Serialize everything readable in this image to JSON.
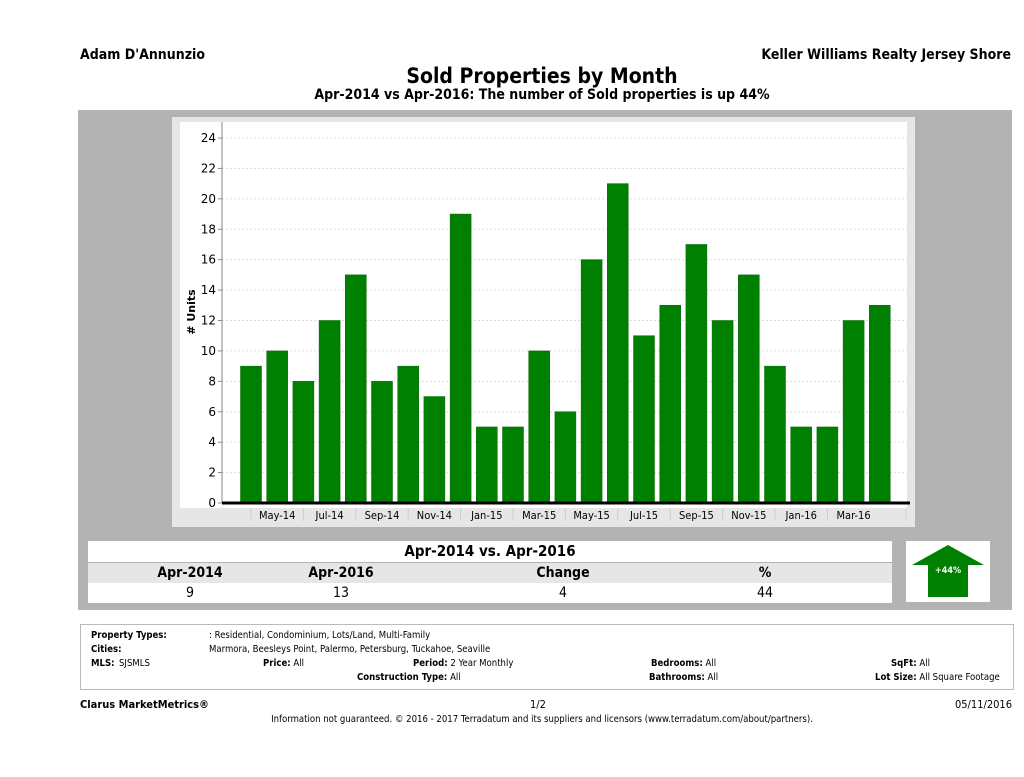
{
  "header": {
    "agent": "Adam D'Annunzio",
    "office": "Keller Williams Realty Jersey Shore",
    "title": "Sold Properties by Month",
    "subtitle": "Apr-2014 vs Apr-2016: The number of Sold  properties is up 44%"
  },
  "chart_data": {
    "type": "bar",
    "title": "Sold Properties by Month",
    "ylabel": "# Units",
    "xlabel": "",
    "ylim": [
      0,
      24
    ],
    "yticks": [
      0,
      2,
      4,
      6,
      8,
      10,
      12,
      14,
      16,
      18,
      20,
      22,
      24
    ],
    "grid": true,
    "bar_color": "#008000",
    "categories": [
      "Apr-14",
      "May-14",
      "Jun-14",
      "Jul-14",
      "Aug-14",
      "Sep-14",
      "Oct-14",
      "Nov-14",
      "Dec-14",
      "Jan-15",
      "Feb-15",
      "Mar-15",
      "Apr-15",
      "May-15",
      "Jun-15",
      "Jul-15",
      "Aug-15",
      "Sep-15",
      "Oct-15",
      "Nov-15",
      "Dec-15",
      "Jan-16",
      "Feb-16",
      "Mar-16",
      "Apr-16"
    ],
    "tick_labels": [
      "May-14",
      "Jul-14",
      "Sep-14",
      "Nov-14",
      "Jan-15",
      "Mar-15",
      "May-15",
      "Jul-15",
      "Sep-15",
      "Nov-15",
      "Jan-16",
      "Mar-16"
    ],
    "values": [
      9,
      10,
      8,
      12,
      15,
      8,
      9,
      7,
      19,
      5,
      5,
      10,
      6,
      16,
      21,
      11,
      13,
      17,
      12,
      15,
      9,
      5,
      5,
      12,
      13
    ]
  },
  "summary": {
    "heading": "Apr-2014 vs. Apr-2016",
    "cols": [
      "Apr-2014",
      "Apr-2016",
      "Change",
      "%"
    ],
    "vals": [
      "9",
      "13",
      "4",
      "44"
    ],
    "badge": "+44%",
    "badge_color": "#008000",
    "arrow_icon": "arrow-up-icon"
  },
  "info": {
    "pt_label": "Property Types:",
    "pt": ": Residential, Condominium, Lots/Land, Multi-Family",
    "cities_label": "Cities:",
    "cities": "Marmora, Beesleys Point, Palermo, Petersburg, Tuckahoe, Seaville",
    "mls_label": "MLS:",
    "mls": "SJSMLS",
    "price_label": "Price:",
    "price": "All",
    "period_label": "Period:",
    "period": "2 Year Monthly",
    "bed_label": "Bedrooms:",
    "bed": "All",
    "sqft_label": "SqFt:",
    "sqft": "All",
    "ct_label": "Construction Type:",
    "ct": "All",
    "bath_label": "Bathrooms:",
    "bath": "All",
    "lot_label": "Lot Size:",
    "lot": "All Square Footage"
  },
  "footer": {
    "brand": "Clarus MarketMetrics®",
    "page": "1/2",
    "date": "05/11/2016",
    "disclaimer": "Information not guaranteed. © 2016 - 2017 Terradatum and its suppliers and licensors (www.terradatum.com/about/partners)."
  }
}
